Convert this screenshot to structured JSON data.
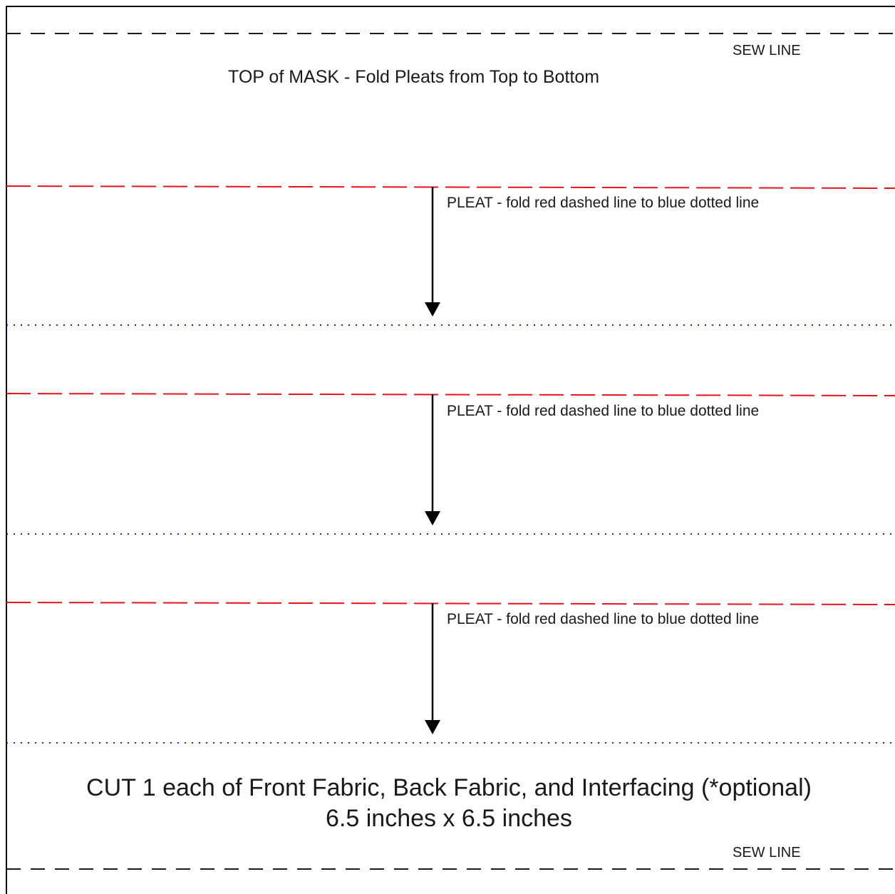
{
  "labels": {
    "sew_line": "SEW LINE",
    "top_instruction": "TOP of MASK - Fold Pleats from Top to Bottom",
    "pleat_instruction": "PLEAT - fold red dashed line to blue dotted line",
    "cut_instruction": "CUT 1 each of Front Fabric, Back Fabric,  and Interfacing (*optional)",
    "dimensions": "6.5 inches x 6.5 inches"
  },
  "legend": {
    "pleat_line_color": "#e8141c",
    "fold_target_color": "#1a22d6",
    "sew_line_color": "#1a1a1a",
    "border_color": "#000000"
  },
  "icons": [
    "down-arrow-icon"
  ]
}
